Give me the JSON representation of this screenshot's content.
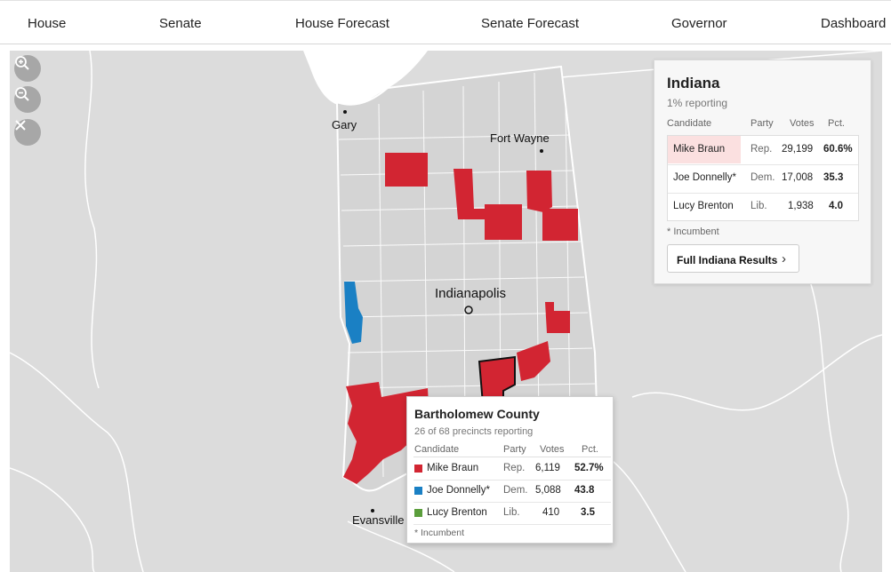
{
  "nav": {
    "items": [
      "House",
      "Senate",
      "House Forecast",
      "Senate Forecast",
      "Governor",
      "Dashboard"
    ]
  },
  "map": {
    "cities": {
      "gary": "Gary",
      "fort_wayne": "Fort Wayne",
      "indianapolis": "Indianapolis",
      "evansville": "Evansville"
    },
    "colors": {
      "background": "#dcdcdc",
      "state_fill": "#d4d4d4",
      "lake": "#ffffff",
      "rep": "#d22532",
      "dem": "#1a80c4",
      "lib": "#5b9e3c"
    },
    "controls": [
      "zoom-in-icon",
      "zoom-out-icon",
      "close-icon"
    ]
  },
  "state_panel": {
    "title": "Indiana",
    "reporting": "1% reporting",
    "headers": {
      "candidate": "Candidate",
      "party": "Party",
      "votes": "Votes",
      "pct": "Pct."
    },
    "rows": [
      {
        "candidate": "Mike Braun",
        "party": "Rep.",
        "votes": "29,199",
        "pct": "60.6%"
      },
      {
        "candidate": "Joe Donnelly*",
        "party": "Dem.",
        "votes": "17,008",
        "pct": "35.3"
      },
      {
        "candidate": "Lucy Brenton",
        "party": "Lib.",
        "votes": "1,938",
        "pct": "4.0"
      }
    ],
    "footnote": "* Incumbent",
    "button": "Full Indiana Results"
  },
  "county_tip": {
    "title": "Bartholomew County",
    "reporting": "26 of 68 precincts reporting",
    "headers": {
      "candidate": "Candidate",
      "party": "Party",
      "votes": "Votes",
      "pct": "Pct."
    },
    "rows": [
      {
        "candidate": "Mike Braun",
        "party": "Rep.",
        "votes": "6,119",
        "pct": "52.7%",
        "color": "#d22532"
      },
      {
        "candidate": "Joe Donnelly*",
        "party": "Dem.",
        "votes": "5,088",
        "pct": "43.8",
        "color": "#1a80c4"
      },
      {
        "candidate": "Lucy Brenton",
        "party": "Lib.",
        "votes": "410",
        "pct": "3.5",
        "color": "#5b9e3c"
      }
    ],
    "footnote": "* Incumbent"
  }
}
